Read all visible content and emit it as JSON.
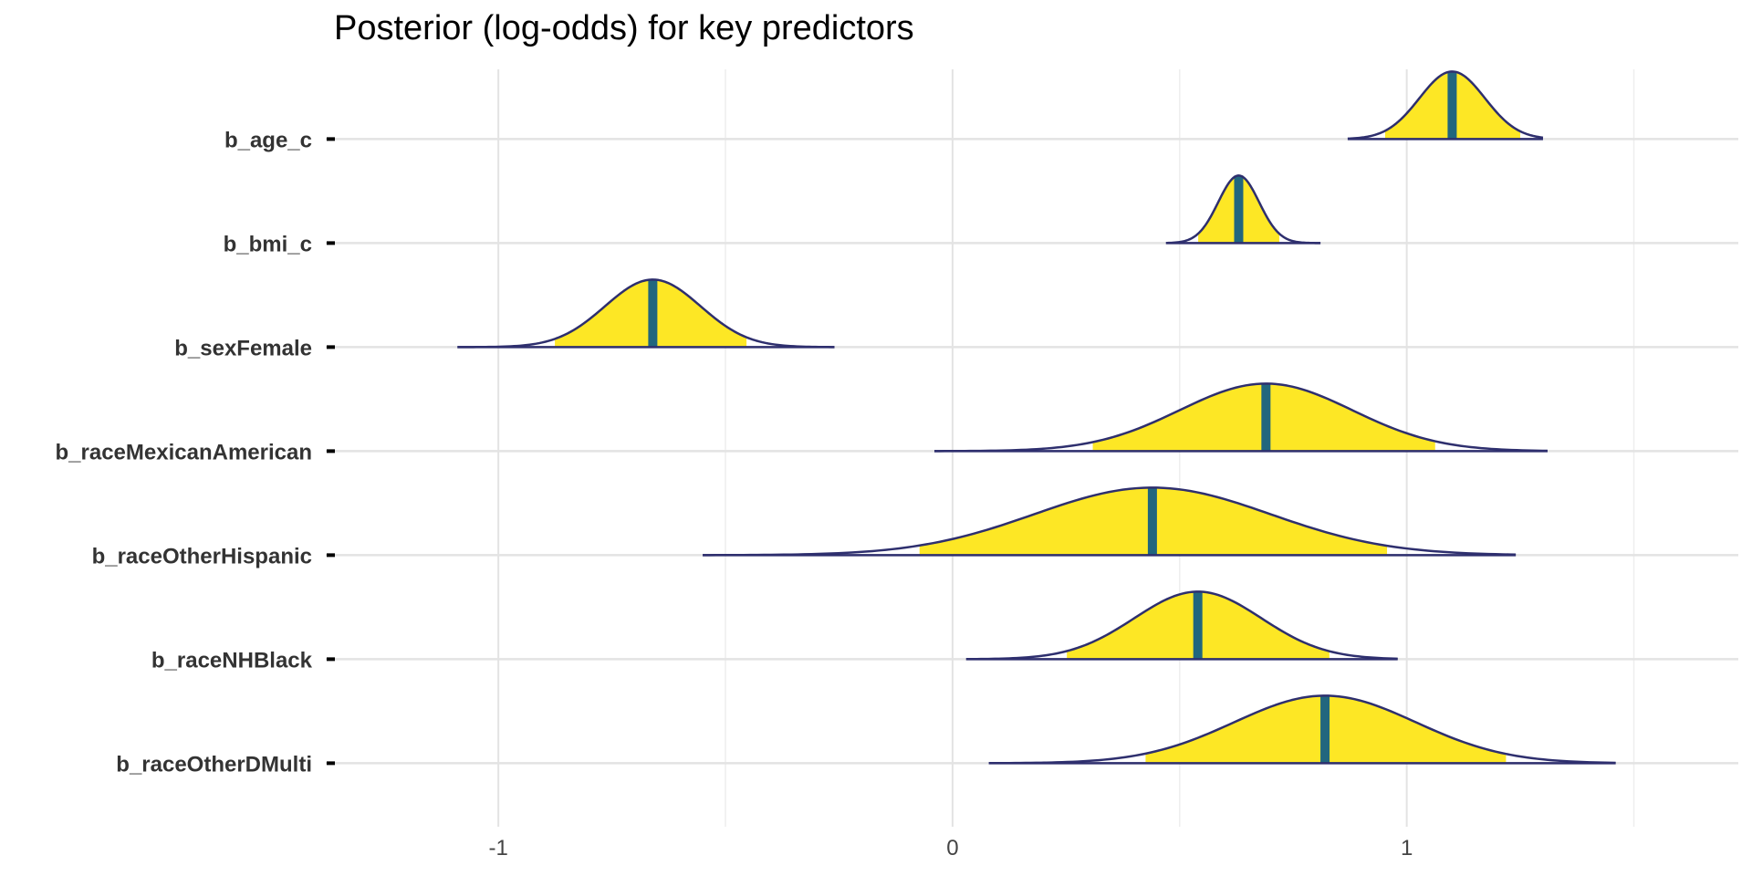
{
  "title": "Posterior (log-odds) for key predictors",
  "colors": {
    "fill": "#FDE725",
    "outline": "#2E2F6E",
    "median": "#21667E",
    "grid_major": "#E3E3E3",
    "grid_minor": "#EEEEEE",
    "axis_text": "#444444"
  },
  "chart_data": {
    "type": "ridgeline",
    "title": "Posterior (log-odds) for key predictors",
    "xlabel": "",
    "ylabel": "",
    "xlim": [
      -1.38,
      1.73
    ],
    "x_ticks": [
      -1,
      0,
      1
    ],
    "x_tick_labels": [
      "-1",
      "0",
      "1"
    ],
    "grid": true,
    "legend": "none",
    "series": [
      {
        "name": "b_age_c",
        "min": 0.87,
        "max": 1.3,
        "median": 1.1,
        "sd": 0.072,
        "inner": [
          0.95,
          1.25
        ]
      },
      {
        "name": "b_bmi_c",
        "min": 0.47,
        "max": 0.81,
        "median": 0.63,
        "sd": 0.045,
        "inner": [
          0.54,
          0.72
        ]
      },
      {
        "name": "b_sexFemale",
        "min": -1.09,
        "max": -0.26,
        "median": -0.66,
        "sd": 0.105,
        "inner": [
          -0.88,
          -0.45
        ]
      },
      {
        "name": "b_raceMexicanAmerican",
        "min": -0.04,
        "max": 1.31,
        "median": 0.69,
        "sd": 0.19,
        "inner": [
          0.3,
          1.07
        ]
      },
      {
        "name": "b_raceOtherHispanic",
        "min": -0.55,
        "max": 1.24,
        "median": 0.44,
        "sd": 0.26,
        "inner": [
          -0.08,
          0.96
        ]
      },
      {
        "name": "b_raceNHBlack",
        "min": 0.03,
        "max": 0.98,
        "median": 0.54,
        "sd": 0.14,
        "inner": [
          0.25,
          0.83
        ]
      },
      {
        "name": "b_raceOtherDMulti",
        "min": 0.08,
        "max": 1.46,
        "median": 0.82,
        "sd": 0.2,
        "inner": [
          0.42,
          1.22
        ]
      }
    ]
  }
}
